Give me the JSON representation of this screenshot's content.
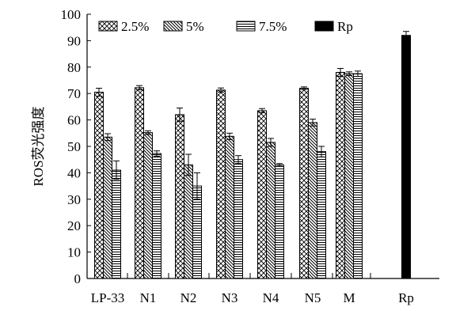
{
  "chart_data": {
    "type": "bar",
    "categories": [
      "LP-33",
      "N1",
      "N2",
      "N3",
      "N4",
      "N5",
      "M",
      "Rp"
    ],
    "series": [
      {
        "name": "2.5%",
        "values": [
          70.5,
          72.2,
          62.0,
          71.3,
          63.5,
          72.0,
          78.0,
          null
        ],
        "errors": [
          1.5,
          0.8,
          2.5,
          0.8,
          0.8,
          0.5,
          1.5,
          null
        ],
        "pattern": "crosshatch"
      },
      {
        "name": "5%",
        "values": [
          53.5,
          55.2,
          43.0,
          53.8,
          51.5,
          59.0,
          77.5,
          null
        ],
        "errors": [
          1.3,
          0.7,
          4.0,
          1.2,
          1.5,
          1.3,
          0.7,
          null
        ],
        "pattern": "diagonal"
      },
      {
        "name": "7.5%",
        "values": [
          41.0,
          47.3,
          35.0,
          45.0,
          43.0,
          48.0,
          77.5,
          null
        ],
        "errors": [
          3.5,
          1.0,
          5.0,
          1.5,
          0.5,
          2.0,
          1.0,
          null
        ],
        "pattern": "horizontal"
      },
      {
        "name": "Rp",
        "values": [
          null,
          null,
          null,
          null,
          null,
          null,
          null,
          92.0
        ],
        "errors": [
          null,
          null,
          null,
          null,
          null,
          null,
          null,
          1.5
        ],
        "pattern": "solid"
      }
    ],
    "ylabel": "ROS荧光强度",
    "xlabel": "",
    "ylim": [
      0,
      100
    ],
    "yticks": [
      0,
      10,
      20,
      30,
      40,
      50,
      60,
      70,
      80,
      90,
      100
    ],
    "grid": false,
    "legend": "top"
  }
}
